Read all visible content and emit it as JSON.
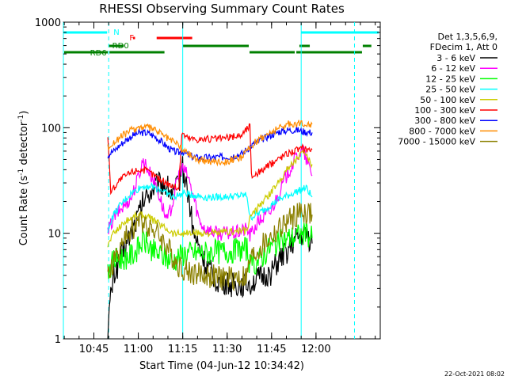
{
  "chart_data": {
    "type": "line",
    "title": "RHESSI Observing Summary Count Rates",
    "xlabel": "Start Time (04-Jun-12 10:34:42)",
    "ylabel_parts": [
      "Count Rate (s",
      "-1",
      " detector",
      "-1",
      ")"
    ],
    "y_scale": "log",
    "ylim": [
      1,
      1000
    ],
    "xlim_minutes_since_start": [
      0,
      107
    ],
    "x_ticks": [
      {
        "label": "10:45",
        "t": 10.3
      },
      {
        "label": "11:00",
        "t": 25.3
      },
      {
        "label": "11:15",
        "t": 40.3
      },
      {
        "label": "11:30",
        "t": 55.3
      },
      {
        "label": "11:45",
        "t": 70.3
      },
      {
        "label": "12:00",
        "t": 85.3
      }
    ],
    "y_ticks": [
      {
        "label": "1",
        "v": 1
      },
      {
        "label": "10",
        "v": 10
      },
      {
        "label": "100",
        "v": 100
      },
      {
        "label": "1000",
        "v": 1000
      }
    ],
    "legend_header": [
      "Det 1,3,5,6,9,",
      "FDecim 1, Att 0"
    ],
    "legend_position": "right",
    "series": [
      {
        "name": "3 - 6 keV",
        "color": "#000000",
        "points": [
          [
            15,
            1.2
          ],
          [
            16,
            2.5
          ],
          [
            17,
            4
          ],
          [
            19,
            5.5
          ],
          [
            21,
            7.5
          ],
          [
            23,
            10.5
          ],
          [
            25,
            14
          ],
          [
            27,
            20
          ],
          [
            29,
            24
          ],
          [
            31,
            28
          ],
          [
            33,
            30
          ],
          [
            35,
            28
          ],
          [
            37,
            23
          ],
          [
            39,
            30
          ],
          [
            40,
            45
          ],
          [
            42,
            25
          ],
          [
            44,
            10
          ],
          [
            46,
            7
          ],
          [
            48,
            5
          ],
          [
            52,
            3.5
          ],
          [
            58,
            3.2
          ],
          [
            63,
            3.4
          ],
          [
            67,
            3.8
          ],
          [
            70,
            4.2
          ],
          [
            73,
            5.5
          ],
          [
            76,
            7
          ],
          [
            79,
            9
          ],
          [
            82,
            10
          ],
          [
            84,
            8
          ]
        ]
      },
      {
        "name": "6 - 12 keV",
        "color": "#ff00ff",
        "points": [
          [
            15,
            10
          ],
          [
            16,
            12
          ],
          [
            17,
            14
          ],
          [
            19,
            16.5
          ],
          [
            21,
            19
          ],
          [
            23,
            22
          ],
          [
            25,
            32
          ],
          [
            27,
            50
          ],
          [
            29,
            38
          ],
          [
            31,
            30
          ],
          [
            33,
            20
          ],
          [
            35,
            13
          ],
          [
            37,
            20
          ],
          [
            39,
            38
          ],
          [
            40,
            42
          ],
          [
            42,
            35
          ],
          [
            44,
            22
          ],
          [
            46,
            13
          ],
          [
            48,
            11
          ],
          [
            52,
            10
          ],
          [
            58,
            10
          ],
          [
            62,
            11
          ],
          [
            63,
            9.5
          ],
          [
            66,
            13
          ],
          [
            70,
            16
          ],
          [
            73,
            25
          ],
          [
            76,
            38
          ],
          [
            79,
            55
          ],
          [
            81,
            60
          ],
          [
            84,
            35
          ]
        ]
      },
      {
        "name": "12 - 25 keV",
        "color": "#00ff00",
        "points": [
          [
            15,
            4.5
          ],
          [
            16,
            5
          ],
          [
            17,
            5.5
          ],
          [
            20,
            5.8
          ],
          [
            23,
            6.2
          ],
          [
            25,
            7
          ],
          [
            27,
            8.5
          ],
          [
            29,
            7.5
          ],
          [
            31,
            6.5
          ],
          [
            33,
            6.2
          ],
          [
            35,
            5.8
          ],
          [
            37,
            5.5
          ],
          [
            39,
            6
          ],
          [
            41,
            6.5
          ],
          [
            44,
            6.5
          ],
          [
            48,
            6.6
          ],
          [
            52,
            6.7
          ],
          [
            58,
            6.9
          ],
          [
            62,
            7.2
          ],
          [
            63,
            4.8
          ],
          [
            66,
            5.5
          ],
          [
            70,
            7.5
          ],
          [
            73,
            8.2
          ],
          [
            76,
            9
          ],
          [
            79,
            9.5
          ],
          [
            82,
            10
          ],
          [
            84,
            9
          ]
        ]
      },
      {
        "name": "25 - 50 keV",
        "color": "#00ffff",
        "points": [
          [
            15,
            10
          ],
          [
            16,
            13
          ],
          [
            17,
            15
          ],
          [
            19,
            18
          ],
          [
            21,
            21
          ],
          [
            23,
            24
          ],
          [
            25,
            26
          ],
          [
            27,
            28
          ],
          [
            29,
            28
          ],
          [
            31,
            27
          ],
          [
            33,
            26
          ],
          [
            35,
            24
          ],
          [
            37,
            22
          ],
          [
            39,
            23
          ],
          [
            41,
            24
          ],
          [
            44,
            23
          ],
          [
            48,
            22
          ],
          [
            52,
            22
          ],
          [
            58,
            22.5
          ],
          [
            62,
            23
          ],
          [
            63,
            14
          ],
          [
            66,
            15.5
          ],
          [
            70,
            18.5
          ],
          [
            73,
            21
          ],
          [
            76,
            23
          ],
          [
            79,
            25
          ],
          [
            82,
            27
          ],
          [
            84,
            22
          ]
        ]
      },
      {
        "name": "50 - 100 keV",
        "color": "#cccc00",
        "points": [
          [
            15,
            7.5
          ],
          [
            16,
            9
          ],
          [
            17,
            10
          ],
          [
            19,
            11.5
          ],
          [
            21,
            13
          ],
          [
            23,
            14
          ],
          [
            25,
            15
          ],
          [
            27,
            15
          ],
          [
            29,
            14
          ],
          [
            31,
            13
          ],
          [
            33,
            12
          ],
          [
            35,
            11
          ],
          [
            37,
            10
          ],
          [
            39,
            10
          ],
          [
            41,
            10
          ],
          [
            44,
            10
          ],
          [
            48,
            10
          ],
          [
            52,
            10
          ],
          [
            58,
            10.5
          ],
          [
            62,
            10.5
          ],
          [
            63,
            14
          ],
          [
            66,
            18
          ],
          [
            70,
            24
          ],
          [
            73,
            32
          ],
          [
            76,
            42
          ],
          [
            79,
            52
          ],
          [
            81,
            58
          ],
          [
            84,
            45
          ]
        ]
      },
      {
        "name": "100 - 300 keV",
        "color": "#ff0000",
        "points": [
          [
            15,
            85
          ],
          [
            16,
            25
          ],
          [
            17,
            27
          ],
          [
            19,
            32
          ],
          [
            21,
            35
          ],
          [
            23,
            38
          ],
          [
            25,
            40
          ],
          [
            27,
            40
          ],
          [
            29,
            38
          ],
          [
            31,
            35
          ],
          [
            33,
            32
          ],
          [
            35,
            30
          ],
          [
            37,
            28
          ],
          [
            39,
            27
          ],
          [
            40,
            90
          ],
          [
            42,
            80
          ],
          [
            45,
            78
          ],
          [
            50,
            78
          ],
          [
            55,
            80
          ],
          [
            60,
            85
          ],
          [
            63,
            105
          ],
          [
            63.5,
            35
          ],
          [
            66,
            38
          ],
          [
            70,
            45
          ],
          [
            73,
            52
          ],
          [
            76,
            58
          ],
          [
            79,
            62
          ],
          [
            81,
            64
          ],
          [
            84,
            62
          ]
        ]
      },
      {
        "name": "300 - 800 keV",
        "color": "#0000ff",
        "points": [
          [
            15,
            55
          ],
          [
            16,
            58
          ],
          [
            17,
            60
          ],
          [
            19,
            68
          ],
          [
            21,
            76
          ],
          [
            23,
            83
          ],
          [
            25,
            88
          ],
          [
            27,
            90
          ],
          [
            29,
            88
          ],
          [
            31,
            82
          ],
          [
            33,
            74
          ],
          [
            35,
            66
          ],
          [
            37,
            60
          ],
          [
            39,
            58
          ],
          [
            40,
            60
          ],
          [
            42,
            55
          ],
          [
            45,
            52
          ],
          [
            50,
            52
          ],
          [
            55,
            53
          ],
          [
            60,
            56
          ],
          [
            63,
            66
          ],
          [
            66,
            75
          ],
          [
            70,
            85
          ],
          [
            73,
            92
          ],
          [
            76,
            95
          ],
          [
            79,
            95
          ],
          [
            81,
            92
          ],
          [
            84,
            90
          ]
        ]
      },
      {
        "name": "800 - 7000 keV",
        "color": "#ff8c00",
        "points": [
          [
            15,
            65
          ],
          [
            16,
            68
          ],
          [
            17,
            72
          ],
          [
            19,
            80
          ],
          [
            21,
            88
          ],
          [
            23,
            95
          ],
          [
            25,
            100
          ],
          [
            27,
            102
          ],
          [
            29,
            100
          ],
          [
            31,
            95
          ],
          [
            33,
            88
          ],
          [
            35,
            80
          ],
          [
            37,
            74
          ],
          [
            39,
            70
          ],
          [
            40,
            62
          ],
          [
            42,
            58
          ],
          [
            45,
            50
          ],
          [
            50,
            48
          ],
          [
            55,
            48
          ],
          [
            60,
            52
          ],
          [
            63,
            65
          ],
          [
            66,
            78
          ],
          [
            70,
            90
          ],
          [
            73,
            100
          ],
          [
            76,
            108
          ],
          [
            79,
            110
          ],
          [
            81,
            110
          ],
          [
            84,
            108
          ]
        ]
      },
      {
        "name": "7000 - 15000 keV",
        "color": "#8b8000",
        "points": [
          [
            15,
            3.8
          ],
          [
            16,
            4.5
          ],
          [
            17,
            5.5
          ],
          [
            19,
            7
          ],
          [
            21,
            9
          ],
          [
            23,
            11
          ],
          [
            25,
            12.5
          ],
          [
            27,
            13
          ],
          [
            29,
            12
          ],
          [
            31,
            10.5
          ],
          [
            33,
            9
          ],
          [
            35,
            7.5
          ],
          [
            37,
            6
          ],
          [
            39,
            5
          ],
          [
            41,
            4.5
          ],
          [
            44,
            4.2
          ],
          [
            48,
            4
          ],
          [
            52,
            3.8
          ],
          [
            58,
            3.8
          ],
          [
            62,
            3.9
          ],
          [
            63,
            5.5
          ],
          [
            66,
            7
          ],
          [
            70,
            9
          ],
          [
            73,
            11
          ],
          [
            76,
            13
          ],
          [
            79,
            15
          ],
          [
            81,
            16
          ],
          [
            84,
            15
          ]
        ]
      }
    ],
    "vlines": [
      {
        "t": 0.0,
        "color": "#00ffff",
        "style": "solid"
      },
      {
        "t": 15.3,
        "color": "#00ffff",
        "style": "dashed"
      },
      {
        "t": 40.3,
        "color": "#00ffff",
        "style": "solid"
      },
      {
        "t": 80.3,
        "color": "#00ffff",
        "style": "solid"
      },
      {
        "t": 98.3,
        "color": "#00ffff",
        "style": "dashed"
      }
    ],
    "annotations": [
      {
        "label": "N",
        "color": "#00ffff"
      },
      {
        "label": "F",
        "color": "#ff0000"
      },
      {
        "label": "RD0",
        "color": "#008000"
      },
      {
        "label": "RD6",
        "color": "#008000"
      }
    ],
    "night_bars": [
      [
        0,
        15.3
      ],
      [
        80.3,
        107
      ]
    ],
    "flare_bars": [
      [
        23.5,
        24.2
      ],
      [
        31.5,
        43.5
      ]
    ],
    "saa_upper_bars": [
      [
        15.3,
        20.4
      ],
      [
        40.3,
        62.6
      ],
      [
        79.7,
        83.2
      ],
      [
        101.1,
        104
      ]
    ],
    "saa_lower_bars": [
      [
        0,
        15.3
      ],
      [
        15.3,
        34.4
      ],
      [
        62.6,
        78.4
      ],
      [
        78.4,
        101.1
      ]
    ],
    "footer_date": "22-Oct-2021 08:02"
  }
}
